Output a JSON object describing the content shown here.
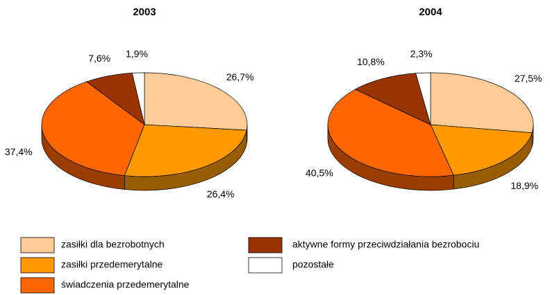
{
  "legend": {
    "labels": [
      "zasiłki dla bezrobotnych",
      "zasiłki przedemerytalne",
      "świadczenia przedemerytalne",
      "aktywne formy przeciwdziałania bezrobociu",
      "pozostałe"
    ],
    "colors": [
      "#FFCC99",
      "#FF9900",
      "#FF6600",
      "#993300",
      "#FFFFFF"
    ]
  },
  "chart_data": [
    {
      "type": "pie",
      "title": "2003",
      "values": [
        26.7,
        26.4,
        37.4,
        7.6,
        1.9
      ],
      "value_labels": [
        "26,7%",
        "26,4%",
        "37,4%",
        "7,6%",
        "1,9%"
      ]
    },
    {
      "type": "pie",
      "title": "2004",
      "values": [
        27.5,
        18.9,
        40.5,
        10.8,
        2.3
      ],
      "value_labels": [
        "27,5%",
        "18,9%",
        "40,5%",
        "10,8%",
        "2,3%"
      ]
    }
  ]
}
